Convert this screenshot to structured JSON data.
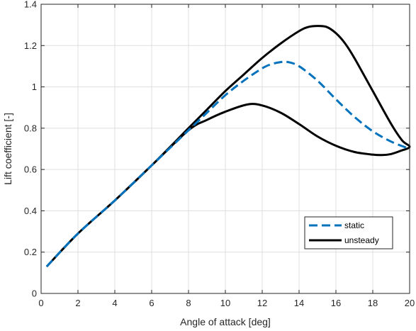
{
  "chart_data": {
    "type": "line",
    "xlabel": "Angle of attack [deg]",
    "ylabel": "Lift coefficient [-]",
    "xlim": [
      0,
      20
    ],
    "ylim": [
      0,
      1.4
    ],
    "x_ticks": [
      0,
      2,
      4,
      6,
      8,
      10,
      12,
      14,
      16,
      18,
      20
    ],
    "y_ticks": [
      0,
      0.2,
      0.4,
      0.6,
      0.8,
      1,
      1.2,
      1.4
    ],
    "x_tick_labels": [
      "0",
      "2",
      "4",
      "6",
      "8",
      "10",
      "12",
      "14",
      "16",
      "18",
      "20"
    ],
    "y_tick_labels": [
      "0",
      "0.2",
      "0.4",
      "0.6",
      "0.8",
      "1",
      "1.2",
      "1.4"
    ],
    "grid": true,
    "legend_position": "bottom-right",
    "series": [
      {
        "name": "static",
        "color": "#0072bd",
        "line_style": "dashed",
        "x": [
          0.3,
          2,
          4,
          6,
          8,
          9,
          10,
          11,
          12,
          12.5,
          13,
          13.4,
          14,
          15,
          16,
          17,
          18,
          19,
          20
        ],
        "y": [
          0.13,
          0.29,
          0.45,
          0.62,
          0.79,
          0.875,
          0.96,
          1.03,
          1.09,
          1.11,
          1.12,
          1.12,
          1.1,
          1.03,
          0.94,
          0.855,
          0.785,
          0.735,
          0.7
        ]
      },
      {
        "name": "unsteady",
        "color": "#000000",
        "line_style": "solid",
        "x": [
          0.3,
          2,
          4,
          6,
          8,
          9,
          10,
          11,
          12,
          13,
          14,
          14.5,
          15,
          15.5,
          16,
          16.5,
          17,
          18,
          19,
          19.6,
          20,
          19.5,
          19,
          18.5,
          18,
          17,
          16,
          15,
          14,
          13,
          12,
          11.2,
          10,
          9,
          8,
          6,
          4,
          2,
          0.3
        ],
        "y": [
          0.13,
          0.29,
          0.45,
          0.62,
          0.8,
          0.89,
          0.98,
          1.06,
          1.14,
          1.21,
          1.27,
          1.29,
          1.295,
          1.29,
          1.26,
          1.21,
          1.14,
          0.98,
          0.82,
          0.74,
          0.71,
          0.69,
          0.675,
          0.67,
          0.672,
          0.685,
          0.715,
          0.76,
          0.82,
          0.875,
          0.91,
          0.915,
          0.88,
          0.84,
          0.79,
          0.62,
          0.45,
          0.29,
          0.13
        ]
      }
    ]
  }
}
